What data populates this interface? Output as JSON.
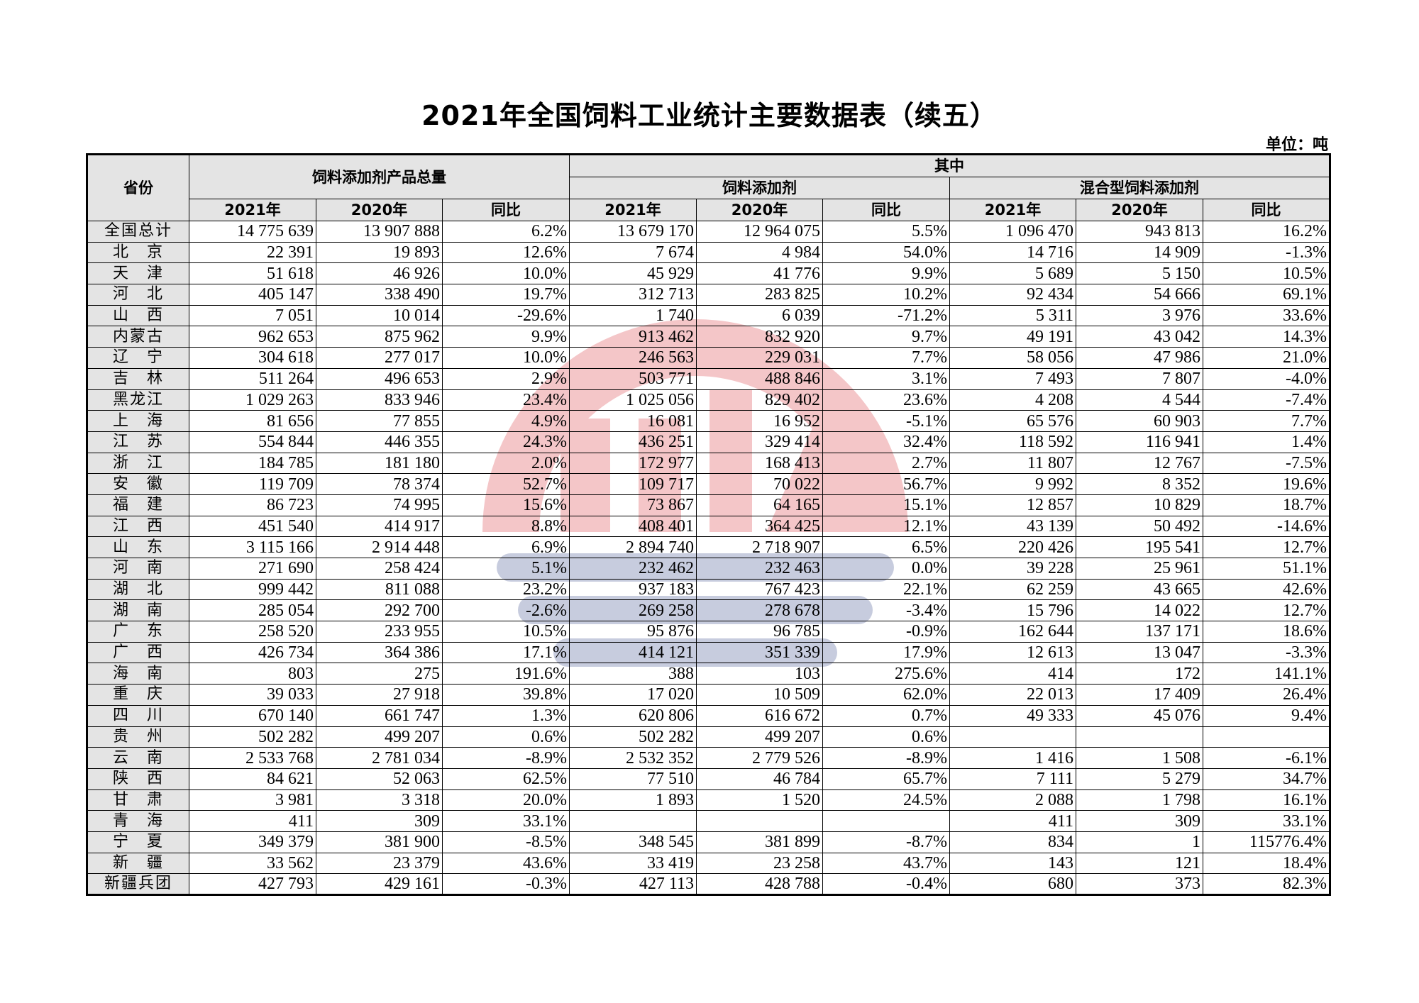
{
  "title": "2021年全国饲料工业统计主要数据表（续五）",
  "unit": "单位：吨",
  "watermark": "CFIA",
  "colors": {
    "header_bg": "#e4e4e4",
    "watermark_red": "#d9363e",
    "watermark_blue": "#3a4a8a"
  },
  "header": {
    "province": "省份",
    "total": "饲料添加剂产品总量",
    "of_which": "其中",
    "additive": "饲料添加剂",
    "mixed": "混合型饲料添加剂",
    "y2021": "2021年",
    "y2020": "2020年",
    "yoy": "同比"
  },
  "rows": [
    [
      "全国总计",
      "14 775 639",
      "13 907 888",
      "6.2%",
      "13 679 170",
      "12 964 075",
      "5.5%",
      "1 096 470",
      "943 813",
      "16.2%"
    ],
    [
      "北　京",
      "22 391",
      "19 893",
      "12.6%",
      "7 674",
      "4 984",
      "54.0%",
      "14 716",
      "14 909",
      "-1.3%"
    ],
    [
      "天　津",
      "51 618",
      "46 926",
      "10.0%",
      "45 929",
      "41 776",
      "9.9%",
      "5 689",
      "5 150",
      "10.5%"
    ],
    [
      "河　北",
      "405 147",
      "338 490",
      "19.7%",
      "312 713",
      "283 825",
      "10.2%",
      "92 434",
      "54 666",
      "69.1%"
    ],
    [
      "山　西",
      "7 051",
      "10 014",
      "-29.6%",
      "1 740",
      "6 039",
      "-71.2%",
      "5 311",
      "3 976",
      "33.6%"
    ],
    [
      "内蒙古",
      "962 653",
      "875 962",
      "9.9%",
      "913 462",
      "832 920",
      "9.7%",
      "49 191",
      "43 042",
      "14.3%"
    ],
    [
      "辽　宁",
      "304 618",
      "277 017",
      "10.0%",
      "246 563",
      "229 031",
      "7.7%",
      "58 056",
      "47 986",
      "21.0%"
    ],
    [
      "吉　林",
      "511 264",
      "496 653",
      "2.9%",
      "503 771",
      "488 846",
      "3.1%",
      "7 493",
      "7 807",
      "-4.0%"
    ],
    [
      "黑龙江",
      "1 029 263",
      "833 946",
      "23.4%",
      "1 025 056",
      "829 402",
      "23.6%",
      "4 208",
      "4 544",
      "-7.4%"
    ],
    [
      "上　海",
      "81 656",
      "77 855",
      "4.9%",
      "16 081",
      "16 952",
      "-5.1%",
      "65 576",
      "60 903",
      "7.7%"
    ],
    [
      "江　苏",
      "554 844",
      "446 355",
      "24.3%",
      "436 251",
      "329 414",
      "32.4%",
      "118 592",
      "116 941",
      "1.4%"
    ],
    [
      "浙　江",
      "184 785",
      "181 180",
      "2.0%",
      "172 977",
      "168 413",
      "2.7%",
      "11 807",
      "12 767",
      "-7.5%"
    ],
    [
      "安　徽",
      "119 709",
      "78 374",
      "52.7%",
      "109 717",
      "70 022",
      "56.7%",
      "9 992",
      "8 352",
      "19.6%"
    ],
    [
      "福　建",
      "86 723",
      "74 995",
      "15.6%",
      "73 867",
      "64 165",
      "15.1%",
      "12 857",
      "10 829",
      "18.7%"
    ],
    [
      "江　西",
      "451 540",
      "414 917",
      "8.8%",
      "408 401",
      "364 425",
      "12.1%",
      "43 139",
      "50 492",
      "-14.6%"
    ],
    [
      "山　东",
      "3 115 166",
      "2 914 448",
      "6.9%",
      "2 894 740",
      "2 718 907",
      "6.5%",
      "220 426",
      "195 541",
      "12.7%"
    ],
    [
      "河　南",
      "271 690",
      "258 424",
      "5.1%",
      "232 462",
      "232 463",
      "0.0%",
      "39 228",
      "25 961",
      "51.1%"
    ],
    [
      "湖　北",
      "999 442",
      "811 088",
      "23.2%",
      "937 183",
      "767 423",
      "22.1%",
      "62 259",
      "43 665",
      "42.6%"
    ],
    [
      "湖　南",
      "285 054",
      "292 700",
      "-2.6%",
      "269 258",
      "278 678",
      "-3.4%",
      "15 796",
      "14 022",
      "12.7%"
    ],
    [
      "广　东",
      "258 520",
      "233 955",
      "10.5%",
      "95 876",
      "96 785",
      "-0.9%",
      "162 644",
      "137 171",
      "18.6%"
    ],
    [
      "广　西",
      "426 734",
      "364 386",
      "17.1%",
      "414 121",
      "351 339",
      "17.9%",
      "12 613",
      "13 047",
      "-3.3%"
    ],
    [
      "海　南",
      "803",
      "275",
      "191.6%",
      "388",
      "103",
      "275.6%",
      "414",
      "172",
      "141.1%"
    ],
    [
      "重　庆",
      "39 033",
      "27 918",
      "39.8%",
      "17 020",
      "10 509",
      "62.0%",
      "22 013",
      "17 409",
      "26.4%"
    ],
    [
      "四　川",
      "670 140",
      "661 747",
      "1.3%",
      "620 806",
      "616 672",
      "0.7%",
      "49 333",
      "45 076",
      "9.4%"
    ],
    [
      "贵　州",
      "502 282",
      "499 207",
      "0.6%",
      "502 282",
      "499 207",
      "0.6%",
      "",
      "",
      ""
    ],
    [
      "云　南",
      "2 533 768",
      "2 781 034",
      "-8.9%",
      "2 532 352",
      "2 779 526",
      "-8.9%",
      "1 416",
      "1 508",
      "-6.1%"
    ],
    [
      "陕　西",
      "84 621",
      "52 063",
      "62.5%",
      "77 510",
      "46 784",
      "65.7%",
      "7 111",
      "5 279",
      "34.7%"
    ],
    [
      "甘　肃",
      "3 981",
      "3 318",
      "20.0%",
      "1 893",
      "1 520",
      "24.5%",
      "2 088",
      "1 798",
      "16.1%"
    ],
    [
      "青　海",
      "411",
      "309",
      "33.1%",
      "",
      "",
      "",
      "411",
      "309",
      "33.1%"
    ],
    [
      "宁　夏",
      "349 379",
      "381 900",
      "-8.5%",
      "348 545",
      "381 899",
      "-8.7%",
      "834",
      "1",
      "115776.4%"
    ],
    [
      "新　疆",
      "33 562",
      "23 379",
      "43.6%",
      "33 419",
      "23 258",
      "43.7%",
      "143",
      "121",
      "18.4%"
    ],
    [
      "新疆兵团",
      "427 793",
      "429 161",
      "-0.3%",
      "427 113",
      "428 788",
      "-0.4%",
      "680",
      "373",
      "82.3%"
    ]
  ]
}
